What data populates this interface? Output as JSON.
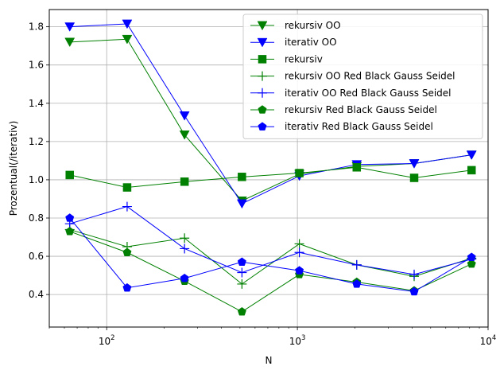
{
  "chart_data": {
    "type": "line",
    "xlabel": "N",
    "ylabel": "Prozentual(/iterativ)",
    "xscale": "log",
    "xlim": [
      50,
      10000
    ],
    "ylim": [
      0.23,
      1.89
    ],
    "x_ticks": [
      {
        "value": 100,
        "base": "10",
        "exp": "2"
      },
      {
        "value": 1000,
        "base": "10",
        "exp": "3"
      },
      {
        "value": 10000,
        "base": "10",
        "exp": "4"
      }
    ],
    "y_ticks": [
      "0.4",
      "0.6",
      "0.8",
      "1.0",
      "1.2",
      "1.4",
      "1.6",
      "1.8"
    ],
    "grid": true,
    "legend_position": "upper-right",
    "x": [
      64,
      128,
      256,
      512,
      1024,
      2048,
      4096,
      8192
    ],
    "series": [
      {
        "name": "rekursiv OO",
        "color": "#008000",
        "marker": "triangle-down",
        "values": [
          1.72,
          1.735,
          1.235,
          0.89,
          1.03,
          1.07,
          1.085,
          1.13
        ]
      },
      {
        "name": "iterativ OO",
        "color": "#0000ff",
        "marker": "triangle-down",
        "values": [
          1.8,
          1.815,
          1.335,
          0.875,
          1.02,
          1.08,
          1.085,
          1.13
        ]
      },
      {
        "name": "rekursiv",
        "color": "#008000",
        "marker": "square",
        "values": [
          1.025,
          0.96,
          0.99,
          1.015,
          1.035,
          1.065,
          1.01,
          1.05
        ]
      },
      {
        "name": "rekursiv OO Red Black Gauss Seidel",
        "color": "#008000",
        "marker": "plus",
        "values": [
          0.74,
          0.65,
          0.695,
          0.455,
          0.665,
          0.555,
          0.495,
          0.59
        ]
      },
      {
        "name": "iterativ OO Red Black Gauss Seidel",
        "color": "#0000ff",
        "marker": "plus",
        "values": [
          0.77,
          0.86,
          0.64,
          0.515,
          0.62,
          0.555,
          0.505,
          0.585
        ]
      },
      {
        "name": "rekursiv Red Black Gauss Seidel",
        "color": "#008000",
        "marker": "pentagon",
        "values": [
          0.73,
          0.62,
          0.47,
          0.31,
          0.505,
          0.465,
          0.42,
          0.56
        ]
      },
      {
        "name": "iterativ Red Black Gauss Seidel",
        "color": "#0000ff",
        "marker": "pentagon",
        "values": [
          0.8,
          0.435,
          0.485,
          0.57,
          0.525,
          0.455,
          0.415,
          0.595
        ]
      }
    ]
  }
}
